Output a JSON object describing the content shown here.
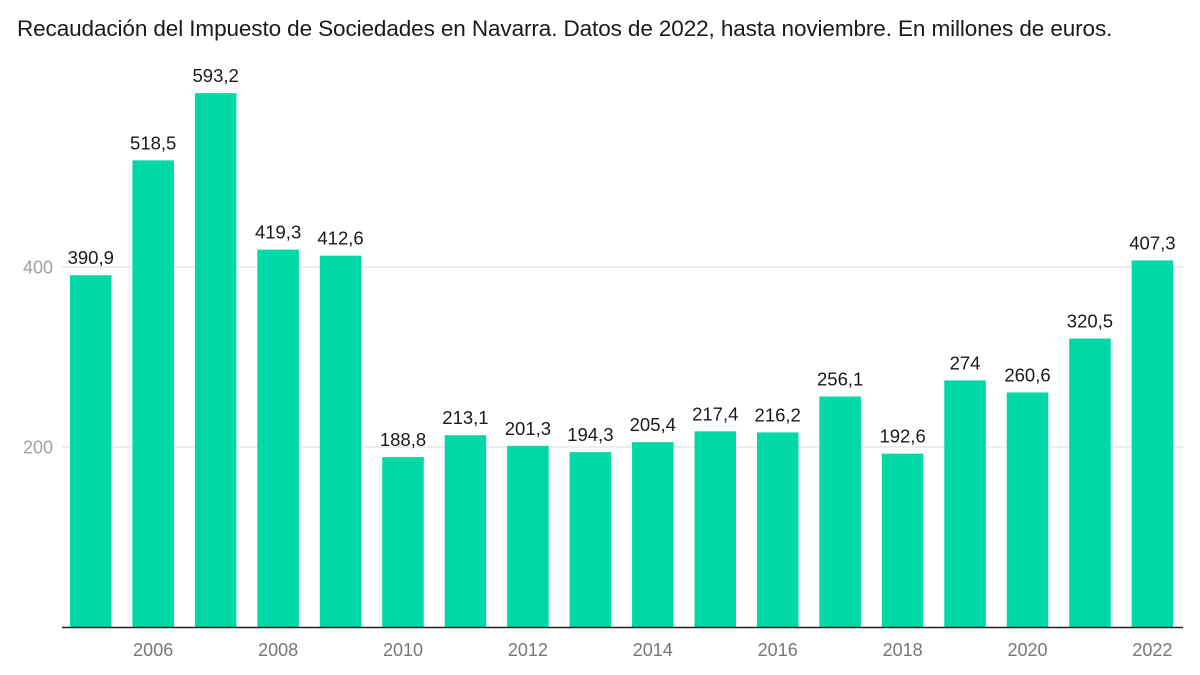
{
  "chart_data": {
    "type": "bar",
    "title": "Recaudación del Impuesto de Sociedades en Navarra. Datos de 2022, hasta noviembre. En millones de euros.",
    "xlabel": "",
    "ylabel": "",
    "categories": [
      "2005",
      "2006",
      "2007",
      "2008",
      "2009",
      "2010",
      "2011",
      "2012",
      "2013",
      "2014",
      "2015",
      "2016",
      "2017",
      "2018",
      "2019",
      "2020",
      "2021",
      "2022"
    ],
    "values": [
      390.9,
      518.5,
      593.2,
      419.3,
      412.6,
      188.8,
      213.1,
      201.3,
      194.3,
      205.4,
      217.4,
      216.2,
      256.1,
      192.6,
      274,
      260.6,
      320.5,
      407.3
    ],
    "data_labels": [
      "390,9",
      "518,5",
      "593,2",
      "419,3",
      "412,6",
      "188,8",
      "213,1",
      "201,3",
      "194,3",
      "205,4",
      "217,4",
      "216,2",
      "256,1",
      "192,6",
      "274",
      "260,6",
      "320,5",
      "407,3"
    ],
    "x_tick_labels": [
      "2006",
      "2008",
      "2010",
      "2012",
      "2014",
      "2016",
      "2018",
      "2020",
      "2022"
    ],
    "y_ticks": [
      200,
      400
    ],
    "y_tick_labels": [
      "200",
      "400"
    ],
    "ylim": [
      0,
      620
    ],
    "grid": true,
    "legend": "none",
    "colors": {
      "bar": "#00d9a6",
      "grid": "#e3e3e3",
      "axis": "#222222"
    }
  }
}
